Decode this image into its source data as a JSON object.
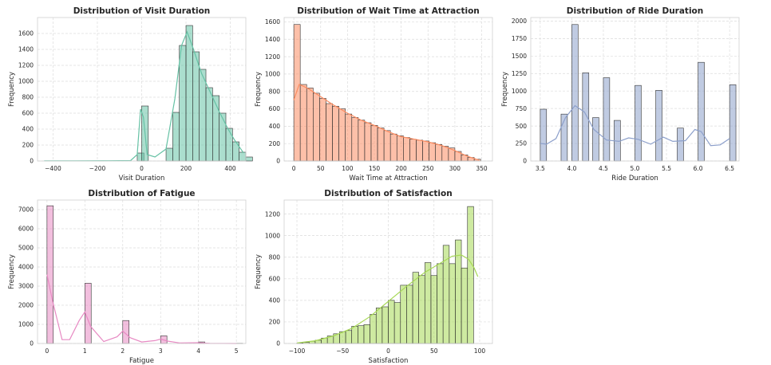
{
  "chart_data": [
    {
      "type": "bar",
      "title": "Distribution of Visit Duration",
      "xlabel": "Visit Duration",
      "ylabel": "Frequency",
      "xlim": [
        -470,
        470
      ],
      "ylim": [
        0,
        1800
      ],
      "xticks": [
        -400,
        -200,
        0,
        200,
        400
      ],
      "yticks": [
        0,
        200,
        400,
        600,
        800,
        1000,
        1200,
        1400,
        1600
      ],
      "bin_width": 30,
      "bins": [
        [
          -20,
          100
        ],
        [
          0,
          690
        ],
        [
          110,
          160
        ],
        [
          140,
          610
        ],
        [
          170,
          1450
        ],
        [
          200,
          1700
        ],
        [
          230,
          1370
        ],
        [
          260,
          1150
        ],
        [
          290,
          920
        ],
        [
          320,
          820
        ],
        [
          350,
          600
        ],
        [
          380,
          410
        ],
        [
          410,
          240
        ],
        [
          440,
          110
        ],
        [
          470,
          50
        ]
      ],
      "kde": [
        [
          -440,
          2
        ],
        [
          -300,
          2
        ],
        [
          -150,
          3
        ],
        [
          -50,
          5
        ],
        [
          -20,
          80
        ],
        [
          -5,
          650
        ],
        [
          8,
          550
        ],
        [
          25,
          80
        ],
        [
          60,
          50
        ],
        [
          110,
          150
        ],
        [
          150,
          780
        ],
        [
          180,
          1450
        ],
        [
          205,
          1620
        ],
        [
          230,
          1430
        ],
        [
          270,
          1100
        ],
        [
          310,
          860
        ],
        [
          350,
          620
        ],
        [
          390,
          400
        ],
        [
          420,
          260
        ],
        [
          460,
          100
        ]
      ],
      "color": "#66c2a5"
    },
    {
      "type": "bar",
      "title": "Distribution of Wait Time at Attraction",
      "xlabel": "Wait Time at Attraction",
      "ylabel": "Frequency",
      "xlim": [
        -18,
        370
      ],
      "ylim": [
        0,
        1650
      ],
      "xticks": [
        0,
        50,
        100,
        150,
        200,
        250,
        300,
        350
      ],
      "yticks": [
        0,
        200,
        400,
        600,
        800,
        1000,
        1200,
        1400,
        1600
      ],
      "bin_width": 12,
      "bins": [
        [
          0,
          1570
        ],
        [
          12,
          880
        ],
        [
          24,
          840
        ],
        [
          36,
          780
        ],
        [
          48,
          720
        ],
        [
          60,
          660
        ],
        [
          72,
          630
        ],
        [
          84,
          600
        ],
        [
          96,
          540
        ],
        [
          108,
          500
        ],
        [
          120,
          470
        ],
        [
          132,
          440
        ],
        [
          144,
          410
        ],
        [
          156,
          380
        ],
        [
          168,
          350
        ],
        [
          180,
          310
        ],
        [
          192,
          290
        ],
        [
          204,
          270
        ],
        [
          216,
          250
        ],
        [
          228,
          240
        ],
        [
          240,
          230
        ],
        [
          252,
          210
        ],
        [
          264,
          190
        ],
        [
          276,
          170
        ],
        [
          288,
          150
        ],
        [
          300,
          110
        ],
        [
          312,
          70
        ],
        [
          324,
          40
        ],
        [
          336,
          20
        ]
      ],
      "kde": [
        [
          0,
          700
        ],
        [
          10,
          880
        ],
        [
          25,
          840
        ],
        [
          50,
          740
        ],
        [
          75,
          640
        ],
        [
          100,
          550
        ],
        [
          125,
          470
        ],
        [
          150,
          410
        ],
        [
          175,
          340
        ],
        [
          200,
          280
        ],
        [
          225,
          250
        ],
        [
          250,
          220
        ],
        [
          275,
          180
        ],
        [
          300,
          120
        ],
        [
          325,
          50
        ],
        [
          345,
          10
        ]
      ],
      "color": "#fc8d62"
    },
    {
      "type": "bar",
      "title": "Distribution of Ride Duration",
      "xlabel": "Ride Duration",
      "ylabel": "Frequency",
      "xlim": [
        3.35,
        6.65
      ],
      "ylim": [
        0,
        2050
      ],
      "xticks": [
        3.5,
        4.0,
        4.5,
        5.0,
        5.5,
        6.0,
        6.5
      ],
      "xtick_labels": [
        "3.5",
        "4.0",
        "4.5",
        "5.0",
        "5.5",
        "6.0",
        "6.5"
      ],
      "yticks": [
        0,
        250,
        500,
        750,
        1000,
        1250,
        1500,
        1750,
        2000
      ],
      "bin_width": 0.1,
      "bins": [
        [
          3.5,
          740
        ],
        [
          3.83,
          670
        ],
        [
          4.0,
          1950
        ],
        [
          4.17,
          1260
        ],
        [
          4.33,
          620
        ],
        [
          4.5,
          1190
        ],
        [
          4.67,
          580
        ],
        [
          5.0,
          1080
        ],
        [
          5.33,
          1010
        ],
        [
          5.67,
          470
        ],
        [
          6.0,
          1410
        ],
        [
          6.5,
          1090
        ]
      ],
      "kde": [
        [
          3.5,
          250
        ],
        [
          3.6,
          240
        ],
        [
          3.75,
          320
        ],
        [
          3.9,
          620
        ],
        [
          4.05,
          790
        ],
        [
          4.2,
          700
        ],
        [
          4.35,
          450
        ],
        [
          4.55,
          300
        ],
        [
          4.75,
          280
        ],
        [
          4.9,
          330
        ],
        [
          5.05,
          310
        ],
        [
          5.25,
          240
        ],
        [
          5.45,
          340
        ],
        [
          5.6,
          280
        ],
        [
          5.8,
          290
        ],
        [
          5.95,
          450
        ],
        [
          6.05,
          420
        ],
        [
          6.2,
          220
        ],
        [
          6.35,
          230
        ],
        [
          6.5,
          320
        ]
      ],
      "color": "#8da0cb"
    },
    {
      "type": "bar",
      "title": "Distribution of Fatigue",
      "xlabel": "Fatigue",
      "ylabel": "Frequency",
      "xlim": [
        -0.25,
        5.25
      ],
      "ylim": [
        0,
        7500
      ],
      "xticks": [
        0,
        1,
        2,
        3,
        4,
        5
      ],
      "yticks": [
        0,
        1000,
        2000,
        3000,
        4000,
        5000,
        6000,
        7000
      ],
      "bin_width": 0.167,
      "bins": [
        [
          0.0,
          7200
        ],
        [
          1.0,
          3150
        ],
        [
          2.0,
          1200
        ],
        [
          3.0,
          400
        ],
        [
          4.0,
          80
        ],
        [
          5.0,
          10
        ]
      ],
      "kde": [
        [
          0.0,
          3600
        ],
        [
          0.15,
          2200
        ],
        [
          0.4,
          200
        ],
        [
          0.6,
          200
        ],
        [
          0.85,
          1200
        ],
        [
          1.0,
          1650
        ],
        [
          1.15,
          900
        ],
        [
          1.5,
          100
        ],
        [
          1.85,
          350
        ],
        [
          2.0,
          650
        ],
        [
          2.2,
          300
        ],
        [
          2.5,
          80
        ],
        [
          2.85,
          150
        ],
        [
          3.0,
          230
        ],
        [
          3.2,
          120
        ],
        [
          3.5,
          30
        ],
        [
          4.0,
          40
        ],
        [
          4.3,
          10
        ],
        [
          5.0,
          0
        ]
      ],
      "color": "#e78ac3"
    },
    {
      "type": "bar",
      "title": "Distribution of Satisfaction",
      "xlabel": "Satisfaction",
      "ylabel": "Frequency",
      "xlim": [
        -114,
        114
      ],
      "ylim": [
        0,
        1330
      ],
      "xticks": [
        -100,
        -50,
        0,
        50,
        100
      ],
      "yticks": [
        0,
        200,
        400,
        600,
        800,
        1000,
        1200
      ],
      "bin_width": 6.67,
      "bins": [
        [
          -100,
          5
        ],
        [
          -93.3,
          10
        ],
        [
          -86.7,
          20
        ],
        [
          -80,
          30
        ],
        [
          -73.3,
          50
        ],
        [
          -66.7,
          70
        ],
        [
          -60,
          90
        ],
        [
          -53.3,
          110
        ],
        [
          -46.7,
          120
        ],
        [
          -40,
          160
        ],
        [
          -33.3,
          165
        ],
        [
          -26.7,
          175
        ],
        [
          -20,
          270
        ],
        [
          -13.3,
          330
        ],
        [
          -6.7,
          340
        ],
        [
          0,
          400
        ],
        [
          6.7,
          380
        ],
        [
          13.3,
          540
        ],
        [
          20,
          540
        ],
        [
          26.7,
          660
        ],
        [
          33.3,
          630
        ],
        [
          40,
          750
        ],
        [
          46.7,
          630
        ],
        [
          53.3,
          740
        ],
        [
          60,
          910
        ],
        [
          66.7,
          740
        ],
        [
          73.3,
          960
        ],
        [
          80,
          700
        ],
        [
          86.7,
          1270
        ],
        [
          93.3,
          0
        ]
      ],
      "kde": [
        [
          -100,
          5
        ],
        [
          -80,
          25
        ],
        [
          -60,
          70
        ],
        [
          -40,
          140
        ],
        [
          -20,
          250
        ],
        [
          0,
          390
        ],
        [
          20,
          530
        ],
        [
          40,
          660
        ],
        [
          60,
          760
        ],
        [
          70,
          810
        ],
        [
          80,
          820
        ],
        [
          88,
          780
        ],
        [
          94,
          700
        ],
        [
          98,
          620
        ]
      ],
      "color": "#a6d854"
    }
  ]
}
